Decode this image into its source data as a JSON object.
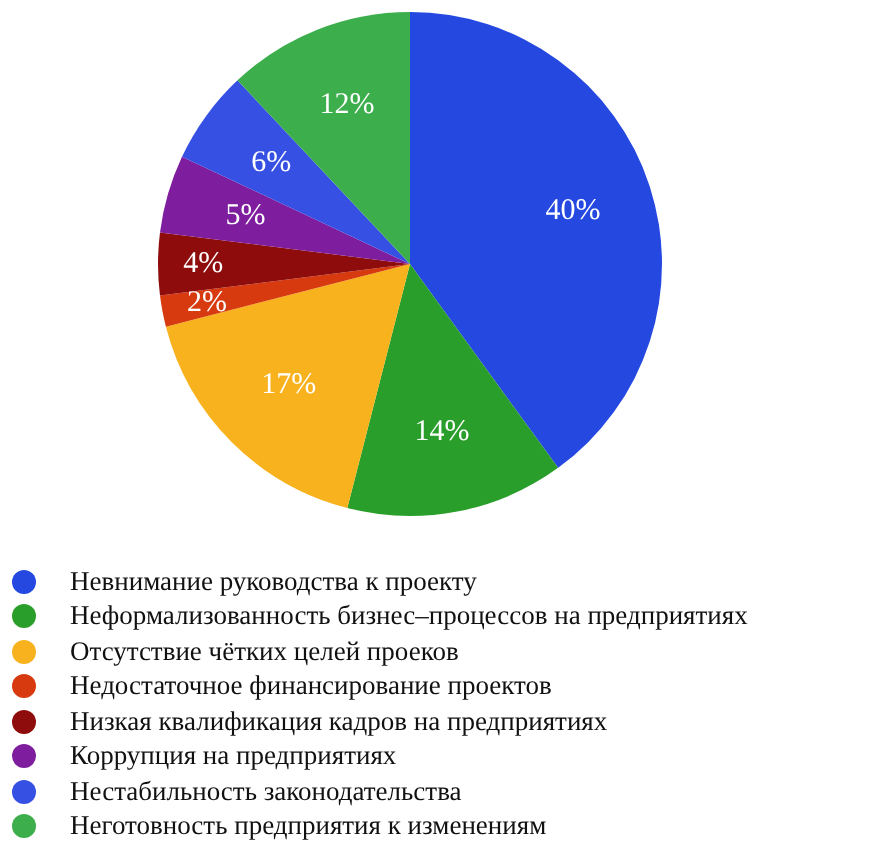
{
  "chart_data": {
    "type": "pie",
    "categories": [
      "Невнимание руководства к проекту",
      "Неформализованность бизнес–процессов на предприятиях",
      "Отсутствие чётких целей проеков",
      "Недостаточное финансирование проектов",
      "Низкая квалификация кадров на предприятиях",
      "Коррупция на предприятиях",
      "Нестабильность законодательства",
      "Неготовность предприятия к изменениям"
    ],
    "values": [
      40,
      14,
      17,
      2,
      4,
      5,
      6,
      12
    ],
    "colors": [
      "#2448e0",
      "#2a9e2a",
      "#f7b21e",
      "#d83a10",
      "#8e0c0c",
      "#7e1e9e",
      "#3650e4",
      "#3cae4c"
    ],
    "value_labels": [
      "40%",
      "14%",
      "17%",
      "2%",
      "4%",
      "5%",
      "6%",
      "12%"
    ],
    "legend": "bottom"
  }
}
